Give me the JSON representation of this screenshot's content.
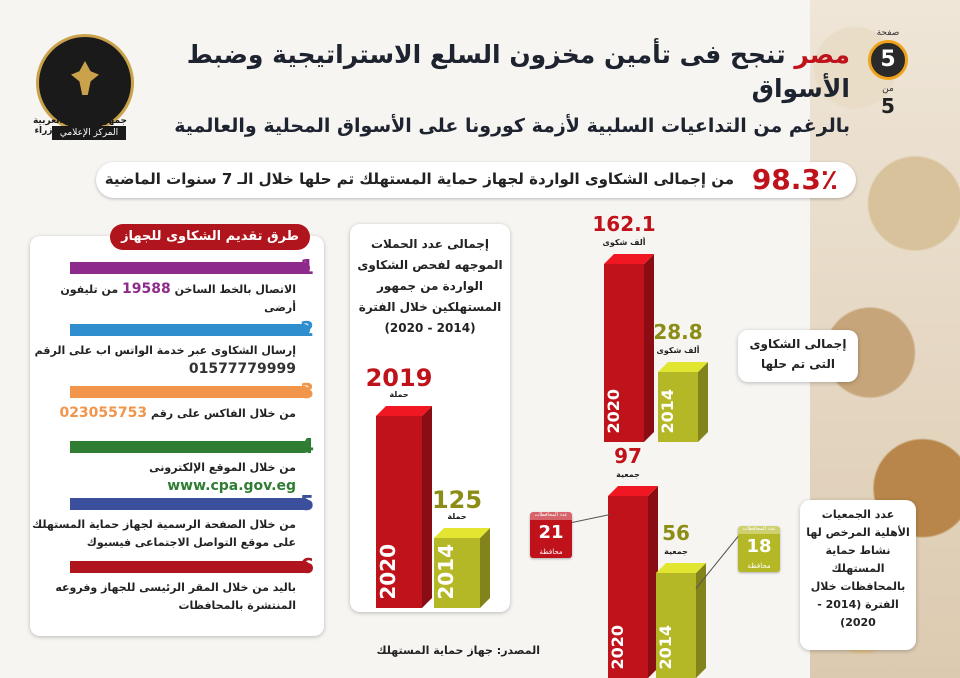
{
  "header": {
    "title_highlight": "مصر",
    "title_rest": "تنجح فى تأمين مخزون السلع الاستراتيجية وضبط الأسواق",
    "subtitle": "بالرغم من التداعيات السلبية لأزمة كورونا على الأسواق المحلية والعالمية"
  },
  "logo": {
    "line1": "جمهورية مصر العربية",
    "line2": "رئاسة مجلس الوزراء",
    "line3": "المركز الإعلامي"
  },
  "page": {
    "label": "صفحة",
    "number": "5",
    "of_label": "من",
    "total": "5"
  },
  "banner": {
    "percent": "98.3٪",
    "text": "من إجمالى الشكاوى الواردة لجهاز حماية المستهلك تم حلها خلال الـ 7 سنوات الماضية"
  },
  "methods": {
    "title": "طرق تقديم الشكاوى للجهاز",
    "items": [
      {
        "num": "1",
        "color": "#8e2a8c",
        "text_a": "الاتصال بالخط الساخن",
        "emph": "19588",
        "text_b": "من تليفون أرضى"
      },
      {
        "num": "2",
        "color": "#2f8fce",
        "text_a": "إرسال الشكاوى عبر خدمة الواتس اب على الرقم",
        "emph": "01577779999",
        "text_b": ""
      },
      {
        "num": "3",
        "color": "#f0954a",
        "text_a": "من خلال الفاكس على رقم",
        "emph": "023055753",
        "text_b": ""
      },
      {
        "num": "4",
        "color": "#2e7d32",
        "text_a": "من خلال الموقع الإلكترونى",
        "emph": "www.cpa.gov.eg",
        "text_b": ""
      },
      {
        "num": "5",
        "color": "#3c4f9c",
        "text_a": "من خلال الصفحة الرسمية لجهاز حماية المستهلك",
        "emph": "",
        "text_b": "على موقع التواصل الاجتماعى فيسبوك"
      },
      {
        "num": "6",
        "color": "#b0141c",
        "text_a": "باليد من خلال المقر الرئيسى للجهاز وفروعه",
        "emph": "",
        "text_b": "المنتشرة بالمحافظات"
      }
    ]
  },
  "campaigns_note": "إجمالى عدد الحملات الموجهه لفحص الشكاوى الواردة من جمهور المستهلكين خلال الفترة (2014 - 2020)",
  "complaints_note": "إجمالى الشكاوى التى تم حلها",
  "associations_note": "عدد الجمعيات الأهلية المرخص لها نشاط حماية المستهلك بالمحافظات خلال الفترة (2014 - 2020)",
  "source": "المصدر: جهاز حماية المستهلك",
  "chart_data": [
    {
      "type": "bar",
      "title": "إجمالى عدد الحملات الموجهه لفحص الشكاوى الواردة من جمهور المستهلكين خلال الفترة (2014 - 2020)",
      "categories": [
        "2020",
        "2014"
      ],
      "values": [
        2019,
        125
      ],
      "value_labels": [
        "2019",
        "125"
      ],
      "unit": "حملة",
      "colors": [
        "#c0121b",
        "#b5b826"
      ]
    },
    {
      "type": "bar",
      "title": "إجمالى الشكاوى التى تم حلها",
      "categories": [
        "2020",
        "2014"
      ],
      "values": [
        162.1,
        28.8
      ],
      "value_labels": [
        "162.1",
        "28.8"
      ],
      "unit": "ألف شكوى",
      "colors": [
        "#c0121b",
        "#b5b826"
      ]
    },
    {
      "type": "bar",
      "title": "عدد الجمعيات الأهلية المرخص لها نشاط حماية المستهلك بالمحافظات خلال الفترة (2014 - 2020)",
      "categories": [
        "2020",
        "2014"
      ],
      "values": [
        97,
        56
      ],
      "value_labels": [
        "97",
        "56"
      ],
      "unit": "جمعية",
      "governorates": [
        "21",
        "18"
      ],
      "governorates_unit": "محافظة",
      "governorates_header": "عدد المحافظات",
      "colors": [
        "#c0121b",
        "#b5b826"
      ]
    }
  ]
}
